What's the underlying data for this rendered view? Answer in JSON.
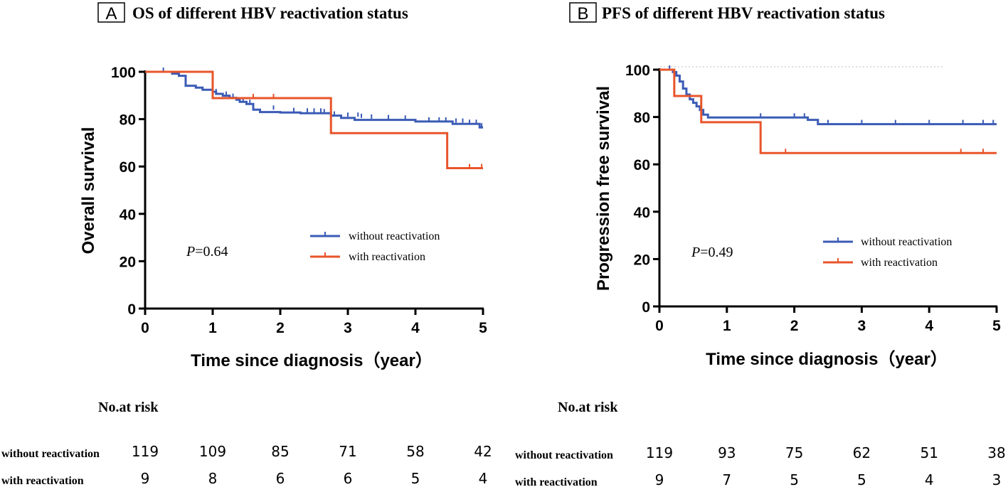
{
  "colors": {
    "without": "#3b5bb5",
    "with": "#e8552b",
    "axis": "#000000"
  },
  "chart_data": [
    {
      "type": "line",
      "panel_letter": "A",
      "title": "OS of different HBV reactivation status",
      "xlabel": "Time since diagnosis（year）",
      "ylabel": "Overall survival",
      "xlim": [
        0,
        5
      ],
      "ylim": [
        0,
        100
      ],
      "xticks": [
        "0",
        "1",
        "2",
        "3",
        "4",
        "5"
      ],
      "yticks": [
        "0",
        "20",
        "40",
        "60",
        "80",
        "100"
      ],
      "pvalue_prefix": "P",
      "pvalue_text": "=0.64",
      "series": [
        {
          "name": "without reactivation",
          "color": "#3b5bb5",
          "steps": [
            [
              0,
              100
            ],
            [
              0.4,
              99.2
            ],
            [
              0.5,
              98.3
            ],
            [
              0.6,
              96.6
            ],
            [
              0.6,
              94.1
            ],
            [
              0.75,
              93.3
            ],
            [
              0.85,
              92.4
            ],
            [
              1.0,
              91.6
            ],
            [
              1.05,
              90.7
            ],
            [
              1.15,
              89.9
            ],
            [
              1.25,
              89.0
            ],
            [
              1.35,
              88.2
            ],
            [
              1.4,
              87.3
            ],
            [
              1.5,
              86.4
            ],
            [
              1.6,
              85.6
            ],
            [
              1.6,
              84.0
            ],
            [
              1.7,
              83.0
            ],
            [
              2.0,
              82.8
            ],
            [
              2.3,
              82.5
            ],
            [
              2.75,
              81.5
            ],
            [
              2.9,
              80.5
            ],
            [
              3.1,
              79.7
            ],
            [
              4.0,
              79.0
            ],
            [
              4.55,
              78.0
            ],
            [
              4.95,
              76.5
            ],
            [
              5.0,
              76.5
            ]
          ],
          "censors": [
            [
              0.27,
              100
            ],
            [
              1.05,
              91.0
            ],
            [
              1.2,
              89.9
            ],
            [
              1.3,
              89.0
            ],
            [
              1.45,
              87.5
            ],
            [
              1.55,
              86.4
            ],
            [
              1.9,
              84.0
            ],
            [
              2.2,
              83.0
            ],
            [
              2.4,
              82.8
            ],
            [
              2.5,
              82.8
            ],
            [
              2.6,
              82.8
            ],
            [
              2.65,
              82.5
            ],
            [
              2.8,
              81.5
            ],
            [
              3.0,
              81.0
            ],
            [
              3.15,
              81.0
            ],
            [
              3.2,
              80.5
            ],
            [
              3.35,
              80.2
            ],
            [
              3.6,
              80.0
            ],
            [
              3.85,
              79.8
            ],
            [
              4.2,
              79.0
            ],
            [
              4.35,
              79.0
            ],
            [
              4.45,
              79.0
            ],
            [
              4.6,
              78.5
            ],
            [
              4.7,
              78.5
            ],
            [
              4.8,
              78.0
            ],
            [
              4.9,
              78.0
            ],
            [
              4.98,
              76.5
            ]
          ]
        },
        {
          "name": "with reactivation",
          "color": "#e8552b",
          "steps": [
            [
              0,
              100
            ],
            [
              1.0,
              88.9
            ],
            [
              2.75,
              74.1
            ],
            [
              4.47,
              59.3
            ],
            [
              5.0,
              59.3
            ]
          ],
          "censors": [
            [
              1.6,
              88.9
            ],
            [
              1.9,
              88.9
            ],
            [
              4.8,
              59.3
            ],
            [
              4.98,
              59.3
            ]
          ]
        }
      ],
      "risk_table": {
        "header": "No.at risk",
        "rows": [
          {
            "label": "without reactivation",
            "values": [
              "119",
              "109",
              "85",
              "71",
              "58",
              "42"
            ]
          },
          {
            "label": "with reactivation",
            "values": [
              "9",
              "8",
              "6",
              "6",
              "5",
              "4"
            ]
          }
        ]
      }
    },
    {
      "type": "line",
      "panel_letter": "B",
      "title": "PFS of different HBV reactivation status",
      "xlabel": "Time since diagnosis（year）",
      "ylabel": "Progression free survival",
      "xlim": [
        0,
        5
      ],
      "ylim": [
        0,
        100
      ],
      "xticks": [
        "0",
        "1",
        "2",
        "3",
        "4",
        "5"
      ],
      "yticks": [
        "0",
        "20",
        "40",
        "60",
        "80",
        "100"
      ],
      "pvalue_prefix": "P",
      "pvalue_text": "=0.49",
      "series": [
        {
          "name": "without reactivation",
          "color": "#3b5bb5",
          "steps": [
            [
              0,
              100
            ],
            [
              0.2,
              99.0
            ],
            [
              0.25,
              97.5
            ],
            [
              0.3,
              95.0
            ],
            [
              0.35,
              92.0
            ],
            [
              0.4,
              89.5
            ],
            [
              0.45,
              87.5
            ],
            [
              0.5,
              86.0
            ],
            [
              0.55,
              84.5
            ],
            [
              0.6,
              83.0
            ],
            [
              0.65,
              81.0
            ],
            [
              0.72,
              79.8
            ],
            [
              2.2,
              78.8
            ],
            [
              2.35,
              77.0
            ],
            [
              5.0,
              77.0
            ]
          ],
          "censors": [
            [
              0.15,
              100
            ],
            [
              1.5,
              79.8
            ],
            [
              2.0,
              79.8
            ],
            [
              2.15,
              79.8
            ],
            [
              2.5,
              77.0
            ],
            [
              3.0,
              77.0
            ],
            [
              3.5,
              77.0
            ],
            [
              4.0,
              77.0
            ],
            [
              4.5,
              77.0
            ],
            [
              4.8,
              77.0
            ],
            [
              4.95,
              77.0
            ]
          ]
        },
        {
          "name": "with reactivation",
          "color": "#e8552b",
          "steps": [
            [
              0,
              100
            ],
            [
              0.22,
              88.9
            ],
            [
              0.62,
              77.8
            ],
            [
              1.5,
              64.8
            ],
            [
              5.0,
              64.8
            ]
          ],
          "censors": [
            [
              1.87,
              64.8
            ],
            [
              4.47,
              64.8
            ],
            [
              4.8,
              64.8
            ]
          ]
        }
      ],
      "risk_table": {
        "header": "No.at risk",
        "rows": [
          {
            "label": "without reactivation",
            "values": [
              "119",
              "93",
              "75",
              "62",
              "51",
              "38"
            ]
          },
          {
            "label": "with reactivation",
            "values": [
              "9",
              "7",
              "5",
              "5",
              "4",
              "3"
            ]
          }
        ]
      }
    }
  ]
}
